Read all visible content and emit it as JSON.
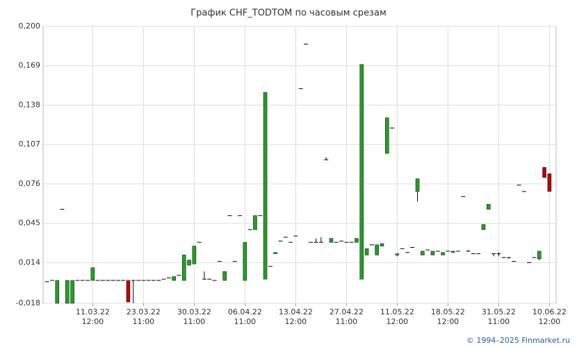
{
  "chart_data": {
    "type": "candlestick",
    "title": "График CHF_TODTOM по часовым срезам",
    "footer": "© 1994–2025 Finmarket.ru",
    "categories": [
      null,
      null,
      null,
      null,
      null,
      null,
      null,
      null,
      null,
      "11.03.22\n12:00",
      null,
      null,
      null,
      null,
      null,
      null,
      null,
      null,
      null,
      "23.03.22\n11:00",
      null,
      null,
      null,
      null,
      null,
      null,
      null,
      null,
      null,
      "30.03.22\n11:00",
      null,
      null,
      null,
      null,
      null,
      null,
      null,
      null,
      null,
      "06.04.22\n11:00",
      null,
      null,
      null,
      null,
      null,
      null,
      null,
      null,
      null,
      "13.04.22\n12:00",
      null,
      null,
      null,
      null,
      null,
      null,
      null,
      null,
      null,
      "27.04.22\n11:00",
      null,
      null,
      null,
      null,
      null,
      null,
      null,
      null,
      null,
      "11.05.22\n12:00",
      null,
      null,
      null,
      null,
      null,
      null,
      null,
      null,
      null,
      "18.05.22\n12:00",
      null,
      null,
      null,
      null,
      null,
      null,
      null,
      null,
      null,
      "31.05.22\n11:00",
      null,
      null,
      null,
      null,
      null,
      null,
      null,
      null,
      null,
      "10.06.22\n12:00"
    ],
    "open": [
      -0.001,
      0,
      -0.018,
      0.056,
      -0.018,
      -0.018,
      0,
      0,
      0,
      0,
      0,
      0,
      0,
      0,
      0,
      0,
      0,
      0,
      0,
      0,
      0,
      0,
      0,
      0.001,
      0.002,
      0,
      0.004,
      0,
      0.012,
      0.013,
      0.03,
      0.001,
      0.001,
      0,
      0.015,
      0,
      0.051,
      0.015,
      0.051,
      0,
      0.04,
      0.04,
      0.051,
      0.001,
      0.011,
      0.021,
      0.031,
      0.034,
      0.03,
      0.035,
      0.151,
      0.186,
      0.03,
      0.03,
      0.03,
      0.095,
      0.03,
      0.03,
      0.031,
      0.03,
      0.03,
      0.03,
      0.001,
      0.02,
      0.028,
      0.02,
      0.027,
      0.1,
      0.12,
      0.02,
      0.025,
      0.022,
      0.026,
      0.07,
      0.02,
      0.024,
      0.02,
      0.023,
      0.02,
      0.023,
      0.022,
      0.023,
      0.066,
      0.023,
      0.021,
      0.021,
      0.04,
      0.056,
      0.021,
      0.021,
      0.018,
      0.018,
      0.015,
      0.075,
      0.07,
      0.014,
      0.018,
      0.017,
      0.089,
      0.084
    ],
    "high": [
      -0.001,
      0,
      0,
      0.056,
      0,
      0,
      0,
      0,
      0,
      0.01,
      0,
      0,
      0,
      0,
      0,
      0,
      0,
      0,
      0,
      0,
      0,
      0,
      0,
      0.001,
      0.002,
      0.003,
      0.004,
      0.02,
      0.016,
      0.027,
      0.03,
      0.007,
      0.001,
      0,
      0.015,
      0.007,
      0.051,
      0.015,
      0.051,
      0.03,
      0.04,
      0.051,
      0.051,
      0.148,
      0.011,
      0.022,
      0.031,
      0.034,
      0.03,
      0.035,
      0.151,
      0.186,
      0.03,
      0.033,
      0.034,
      0.097,
      0.033,
      0.03,
      0.031,
      0.03,
      0.03,
      0.033,
      0.17,
      0.025,
      0.028,
      0.028,
      0.029,
      0.128,
      0.12,
      0.021,
      0.025,
      0.022,
      0.026,
      0.08,
      0.023,
      0.024,
      0.023,
      0.023,
      0.022,
      0.023,
      0.023,
      0.023,
      0.066,
      0.024,
      0.021,
      0.021,
      0.044,
      0.06,
      0.021,
      0.022,
      0.018,
      0.018,
      0.015,
      0.075,
      0.07,
      0.014,
      0.018,
      0.023,
      0.089,
      0.084
    ],
    "low": [
      -0.001,
      0,
      -0.018,
      0.056,
      -0.018,
      -0.018,
      0,
      0,
      0,
      0,
      0,
      0,
      0,
      0,
      0,
      0,
      -0.017,
      -0.018,
      0,
      0,
      0,
      0,
      0,
      0.001,
      0.002,
      0,
      0.004,
      0,
      0.012,
      0.013,
      0.03,
      0.001,
      0.001,
      0,
      0.015,
      0,
      0.051,
      0.015,
      0.051,
      0,
      0.04,
      0.04,
      0.051,
      0.001,
      0.011,
      0.021,
      0.031,
      0.034,
      0.03,
      0.035,
      0.151,
      0.186,
      0.03,
      0.03,
      0.03,
      0.095,
      0.03,
      0.03,
      0.031,
      0.03,
      0.03,
      0.03,
      0.001,
      0.02,
      0.028,
      0.02,
      0.027,
      0.1,
      0.12,
      0.019,
      0.025,
      0.022,
      0.026,
      0.062,
      0.02,
      0.024,
      0.02,
      0.023,
      0.02,
      0.023,
      0.022,
      0.023,
      0.066,
      0.023,
      0.021,
      0.021,
      0.04,
      0.056,
      0.019,
      0.019,
      0.018,
      0.017,
      0.015,
      0.075,
      0.07,
      0.014,
      0.018,
      0.016,
      0.081,
      0.07
    ],
    "close": [
      -0.001,
      0,
      0,
      0.056,
      0,
      0,
      0,
      0,
      0,
      0.01,
      0,
      0,
      0,
      0,
      0,
      0,
      -0.017,
      0,
      0,
      0,
      0,
      0,
      0,
      0.001,
      0.002,
      0.003,
      0.004,
      0.02,
      0.016,
      0.027,
      0.03,
      0.001,
      0.001,
      0,
      0.015,
      0.007,
      0.051,
      0.015,
      0.051,
      0.03,
      0.04,
      0.051,
      0.051,
      0.148,
      0.011,
      0.022,
      0.031,
      0.034,
      0.03,
      0.035,
      0.151,
      0.186,
      0.03,
      0.03,
      0.03,
      0.095,
      0.033,
      0.03,
      0.031,
      0.03,
      0.03,
      0.033,
      0.17,
      0.025,
      0.028,
      0.028,
      0.029,
      0.128,
      0.12,
      0.021,
      0.025,
      0.022,
      0.026,
      0.08,
      0.023,
      0.024,
      0.023,
      0.023,
      0.022,
      0.023,
      0.023,
      0.023,
      0.066,
      0.023,
      0.021,
      0.021,
      0.044,
      0.06,
      0.021,
      0.021,
      0.018,
      0.018,
      0.015,
      0.075,
      0.07,
      0.014,
      0.018,
      0.023,
      0.081,
      0.07
    ],
    "up_color": "#22a022",
    "down_color": "#bb0000",
    "ylim": [
      -0.018,
      0.2
    ],
    "yticks": [
      {
        "value": -0.018,
        "label": "-0,018"
      },
      {
        "value": 0.014,
        "label": "0,014"
      },
      {
        "value": 0.045,
        "label": "0,045"
      },
      {
        "value": 0.076,
        "label": "0,076"
      },
      {
        "value": 0.107,
        "label": "0,107"
      },
      {
        "value": 0.138,
        "label": "0,138"
      },
      {
        "value": 0.169,
        "label": "0,169"
      },
      {
        "value": 0.2,
        "label": "0,200"
      }
    ],
    "grid": true
  }
}
